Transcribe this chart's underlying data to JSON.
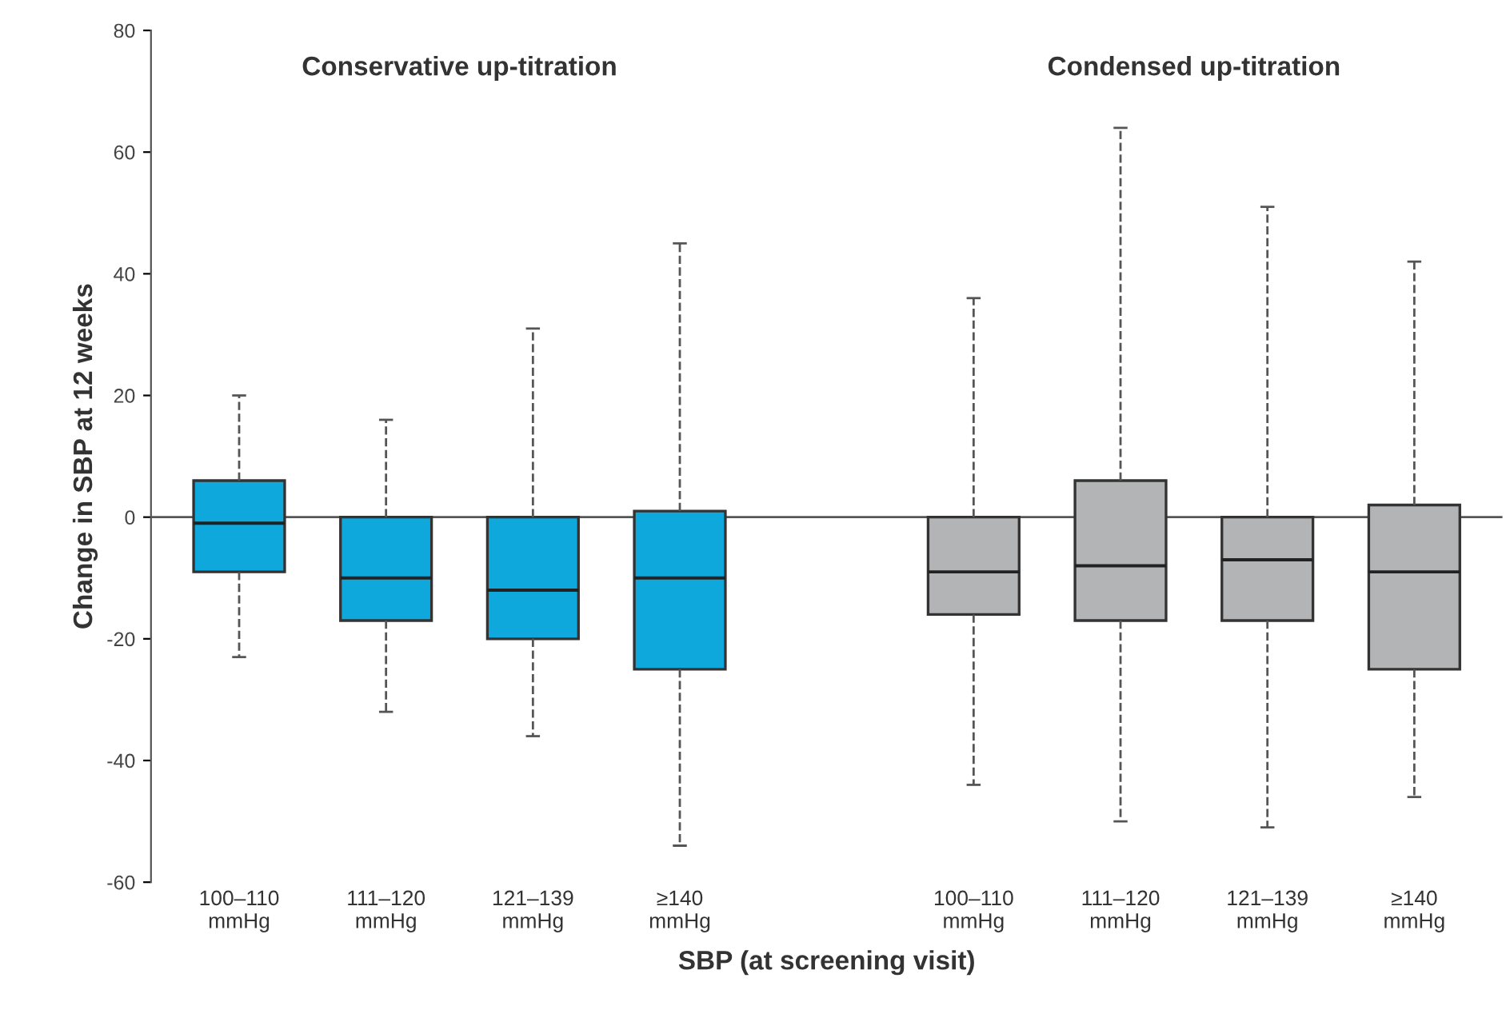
{
  "chart_data": {
    "type": "box",
    "xlabel": "SBP (at screening visit)",
    "ylabel": "Change in SBP at 12 weeks",
    "categories": [
      "100–110\nmmHg",
      "111–120\nmmHg",
      "121–139\nmmHg",
      "≥140\nmmHg",
      null,
      "100–110\nmmHg",
      "111–120\nmmHg",
      "121–139\nmmHg",
      "≥140\nmmHg"
    ],
    "series": [
      {
        "color": "#0ea8dc",
        "boxes": [
          {
            "low": -23,
            "q1": -9,
            "median": -1,
            "q3": 6,
            "high": 20
          },
          {
            "low": -32,
            "q1": -17,
            "median": -10,
            "q3": 0,
            "high": 16
          },
          {
            "low": -36,
            "q1": -20,
            "median": -12,
            "q3": 0,
            "high": 31
          },
          {
            "low": -54,
            "q1": -25,
            "median": -10,
            "q3": 1,
            "high": 45
          },
          null,
          null,
          null,
          null,
          null
        ]
      },
      {
        "color": "#b3b4b6",
        "boxes": [
          null,
          null,
          null,
          null,
          null,
          {
            "low": -44,
            "q1": -16,
            "median": -9,
            "q3": 0,
            "high": 36
          },
          {
            "low": -50,
            "q1": -17,
            "median": -8,
            "q3": 6,
            "high": 64
          },
          {
            "low": -51,
            "q1": -17,
            "median": -7,
            "q3": 0,
            "high": 51
          },
          {
            "low": -46,
            "q1": -25,
            "median": -9,
            "q3": 2,
            "high": 42
          }
        ]
      }
    ],
    "ylim": [
      -60,
      80
    ],
    "yticks": [
      -60,
      -40,
      -20,
      0,
      20,
      40,
      60,
      80
    ],
    "ref_lines": [
      {
        "axis": "y",
        "value": 0,
        "color": "#555555"
      }
    ],
    "annotations": [
      "Conservative up-titration",
      "Condensed up-titration"
    ],
    "line_style": "dashed",
    "grid": false
  }
}
